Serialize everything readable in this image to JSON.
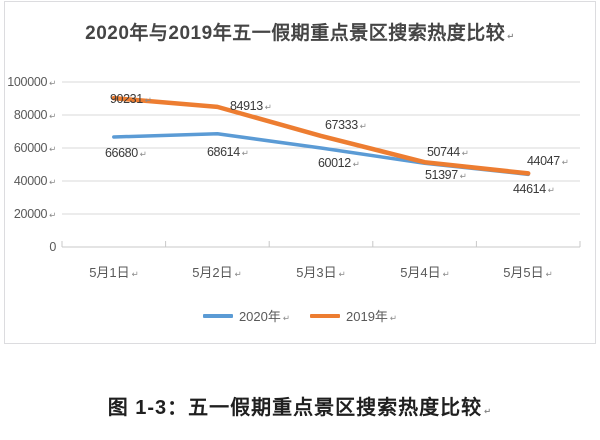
{
  "chart_data": {
    "type": "line",
    "title": "2020年与2019年五一假期重点景区搜索热度比较",
    "categories": [
      "5月1日",
      "5月2日",
      "5月3日",
      "5月4日",
      "5月5日"
    ],
    "series": [
      {
        "name": "2020年",
        "color": "#5B9BD5",
        "values": [
          66680,
          68614,
          60012,
          50744,
          44047
        ]
      },
      {
        "name": "2019年",
        "color": "#ED7D31",
        "values": [
          90231,
          84913,
          67333,
          51397,
          44614
        ]
      }
    ],
    "xlabel": "",
    "ylabel": "",
    "ylim": [
      0,
      100000
    ],
    "yticks": [
      100000,
      80000,
      60000,
      40000,
      20000,
      0
    ],
    "grid": true,
    "legend_position": "bottom"
  },
  "caption": "图 1-3：五一假期重点景区搜索热度比较",
  "marks": {
    "return_mark": "↵"
  },
  "colors": {
    "grid": "#d9d9d9",
    "axis": "#c8c8c8",
    "tick_text": "#595959",
    "blue": "#5B9BD5",
    "orange": "#ED7D31"
  }
}
